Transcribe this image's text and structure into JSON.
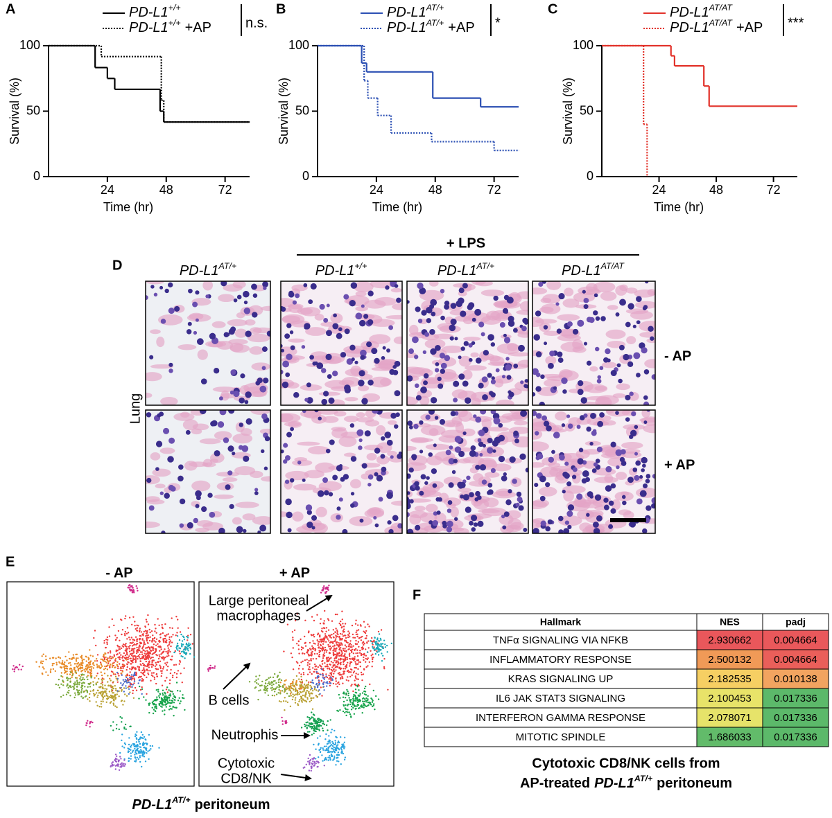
{
  "chart_data": [
    {
      "panel": "A",
      "type": "line",
      "step": true,
      "ylabel": "Survival (%)",
      "xlabel": "Time (hr)",
      "xlim": [
        0,
        82
      ],
      "ylim": [
        0,
        100
      ],
      "xticks": [
        24,
        48,
        72
      ],
      "yticks": [
        0,
        50,
        100
      ],
      "significance": "n.s.",
      "series": [
        {
          "name": "PD-L1",
          "name_sup": "+/+",
          "color": "#000000",
          "dashed": false,
          "x": [
            0,
            19,
            24,
            27,
            45.5,
            47,
            82
          ],
          "values": [
            100,
            83.3,
            75,
            66.7,
            50,
            41.7,
            41.7
          ]
        },
        {
          "name": "PD-L1",
          "name_sup": "+/+",
          "name_suffix": "+AP",
          "color": "#000000",
          "dashed": true,
          "x": [
            0,
            21.5,
            46,
            47,
            82
          ],
          "values": [
            100,
            91.7,
            58.3,
            41.7,
            41.7
          ]
        }
      ]
    },
    {
      "panel": "B",
      "type": "line",
      "step": true,
      "ylabel": "Survival (%)",
      "xlabel": "Time (hr)",
      "xlim": [
        0,
        82
      ],
      "ylim": [
        0,
        100
      ],
      "xticks": [
        24,
        48,
        72
      ],
      "yticks": [
        0,
        50,
        100
      ],
      "significance": "*",
      "series": [
        {
          "name": "PD-L1",
          "name_sup": "AT/+",
          "color": "#2b4fb3",
          "dashed": false,
          "x": [
            0,
            18,
            20,
            47,
            66.5,
            82
          ],
          "values": [
            100,
            86.7,
            80,
            60,
            53.3,
            53.3
          ]
        },
        {
          "name": "PD-L1",
          "name_sup": "AT/+",
          "name_suffix": "+AP",
          "color": "#2b4fb3",
          "dashed": true,
          "x": [
            0,
            19,
            20.5,
            24.5,
            30,
            46.5,
            72,
            82
          ],
          "values": [
            100,
            73.3,
            60,
            46.7,
            33.3,
            26.7,
            20,
            20
          ]
        }
      ]
    },
    {
      "panel": "C",
      "type": "line",
      "step": true,
      "ylabel": "Survival (%)",
      "xlabel": "Time (hr)",
      "xlim": [
        0,
        82
      ],
      "ylim": [
        0,
        100
      ],
      "xticks": [
        24,
        48,
        72
      ],
      "yticks": [
        0,
        50,
        100
      ],
      "significance": "***",
      "series": [
        {
          "name": "PD-L1",
          "name_sup": "AT/AT",
          "color": "#e2322a",
          "dashed": false,
          "x": [
            0,
            29,
            30.5,
            42.8,
            45,
            82
          ],
          "values": [
            100,
            92.3,
            84.6,
            69.2,
            53.8,
            53.8
          ]
        },
        {
          "name": "PD-L1",
          "name_sup": "AT/AT",
          "name_suffix": "+AP",
          "color": "#e2322a",
          "dashed": true,
          "x": [
            0,
            17.5,
            19
          ],
          "values": [
            100,
            40,
            0
          ]
        }
      ]
    }
  ],
  "panel_d": {
    "label": "D",
    "treatment": "+ LPS",
    "control_column": {
      "name": "PD-L1",
      "sup": "AT/+"
    },
    "columns": [
      {
        "name": "PD-L1",
        "sup": "+/+"
      },
      {
        "name": "PD-L1",
        "sup": "AT/+"
      },
      {
        "name": "PD-L1",
        "sup": "AT/AT"
      }
    ],
    "rows": [
      "- AP",
      "+ AP"
    ],
    "tissue": "Lung"
  },
  "panel_e": {
    "label": "E",
    "groups": [
      "- AP",
      "+ AP"
    ],
    "annotations": [
      [
        "Large peritoneal",
        "macrophages"
      ],
      [
        "B cells"
      ],
      [
        "Neutrophis"
      ],
      [
        "Cytotoxic",
        "CD8/NK"
      ]
    ],
    "caption": {
      "name": "PD-L1",
      "sup": "AT/+",
      "suffix": "peritoneum"
    }
  },
  "panel_f": {
    "label": "F",
    "columns": [
      "Hallmark",
      "NES",
      "padj"
    ],
    "rows": [
      [
        "TNFα SIGNALING VIA NFKB",
        "2.930662",
        "0.004664"
      ],
      [
        "INFLAMMATORY RESPONSE",
        "2.500132",
        "0.004664"
      ],
      [
        "KRAS SIGNALING UP",
        "2.182535",
        "0.010138"
      ],
      [
        "IL6 JAK STAT3 SIGNALING",
        "2.100453",
        "0.017336"
      ],
      [
        "INTERFERON GAMMA RESPONSE",
        "2.078071",
        "0.017336"
      ],
      [
        "MITOTIC SPINDLE",
        "1.686033",
        "0.017336"
      ]
    ],
    "nes_colors": [
      "#e9575b",
      "#f09a57",
      "#f6cf63",
      "#e8e369",
      "#e6e36a",
      "#62bb6a"
    ],
    "padj_colors": [
      "#e9585b",
      "#ea5f5a",
      "#f2a460",
      "#5cb96a",
      "#5cb96a",
      "#5cb96a"
    ],
    "caption": {
      "line1": "Cytotoxic CD8/NK cells from",
      "prefix": "AP-treated",
      "name": "PD-L1",
      "sup": "AT/+",
      "suffix": "peritoneum"
    }
  }
}
